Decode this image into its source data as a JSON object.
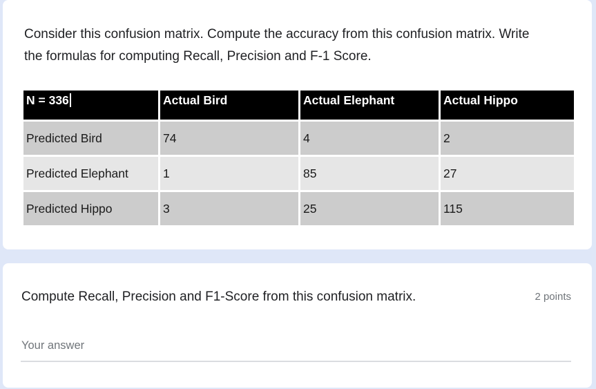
{
  "page": {
    "background_color": "#dfe7f8",
    "card_color": "#ffffff"
  },
  "question1": {
    "description": "Consider this confusion matrix. Compute the accuracy from this confusion matrix. Write the formulas for computing Recall, Precision and F-1 Score.",
    "table": {
      "header": [
        "N = 336",
        "Actual Bird",
        "Actual Elephant",
        "Actual Hippo"
      ],
      "rows": [
        {
          "label": "Predicted Bird",
          "values": [
            "74",
            "4",
            "2"
          ]
        },
        {
          "label": "Predicted Elephant",
          "values": [
            "1",
            "85",
            "27"
          ]
        },
        {
          "label": "Predicted Hippo",
          "values": [
            "3",
            "25",
            "115"
          ]
        }
      ],
      "colors": {
        "header_bg": "#000000",
        "header_text": "#ffffff",
        "row_odd_bg": "#cccccc",
        "row_even_bg": "#e6e6e6",
        "cell_text": "#1b1b1b"
      }
    }
  },
  "question2": {
    "title": "Compute Recall, Precision and F1-Score from this confusion matrix.",
    "points_label": "2 points",
    "answer_placeholder": "Your answer"
  }
}
